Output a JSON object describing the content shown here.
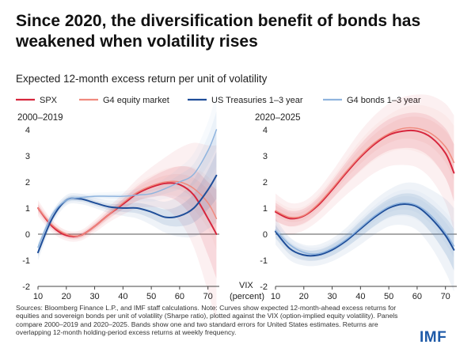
{
  "title": "Since 2020, the diversification benefit of bonds has weakened when volatility rises",
  "subtitle": "Expected 12-month excess return per unit of volatility",
  "sources": "Sources: Bloomberg Finance L.P., and IMF staff calculations. Note: Curves show expected 12-month-ahead excess returns for equities and sovereign bonds per unit of volatility (Sharpe ratio), plotted against the VIX (option-implied equity volatility). Panels compare 2000–2019 and 2020–2025. Bands show one and two standard errors for United States estimates. Returns are overlapping 12-month holding-period excess returns at weekly frequency.",
  "logo": "IMF",
  "chart_data": {
    "type": "line",
    "xlabel_lines": [
      "VIX",
      "(percent)"
    ],
    "xlim": [
      10,
      74
    ],
    "ylim": [
      -2,
      4
    ],
    "x_ticks": [
      10,
      20,
      30,
      40,
      50,
      60,
      70
    ],
    "y_ticks": [
      -2,
      -1,
      0,
      1,
      2,
      3,
      4
    ],
    "legend": [
      {
        "name": "SPX",
        "color": "#d7263d"
      },
      {
        "name": "G4 equity market",
        "color": "#f08a7e"
      },
      {
        "name": "US Treasuries 1–3 year",
        "color": "#1f4e99"
      },
      {
        "name": "G4 bonds 1–3 year",
        "color": "#8fb4de"
      }
    ],
    "panels": [
      {
        "title": "2000–2019",
        "x": [
          10,
          15,
          20,
          25,
          30,
          35,
          40,
          45,
          50,
          55,
          60,
          65,
          70,
          73
        ],
        "series": [
          {
            "name": "SPX",
            "color": "#d7263d",
            "width": 2.0,
            "values": [
              1.0,
              0.3,
              -0.05,
              -0.05,
              0.3,
              0.75,
              1.15,
              1.55,
              1.8,
              1.95,
              1.9,
              1.5,
              0.6,
              0.0
            ],
            "band": [
              0.15,
              0.12,
              0.1,
              0.1,
              0.12,
              0.15,
              0.2,
              0.28,
              0.38,
              0.5,
              0.7,
              1.0,
              1.4,
              1.7
            ]
          },
          {
            "name": "G4 equity market",
            "color": "#f08a7e",
            "width": 1.5,
            "values": [
              1.0,
              0.35,
              0.0,
              -0.05,
              0.3,
              0.75,
              1.2,
              1.6,
              1.85,
              2.0,
              2.0,
              1.75,
              1.2,
              0.6
            ],
            "band": [
              0.1,
              0.08,
              0.07,
              0.07,
              0.08,
              0.1,
              0.12,
              0.16,
              0.2,
              0.25,
              0.3,
              0.4,
              0.5,
              0.6
            ]
          },
          {
            "name": "US Treasuries 1–3 year",
            "color": "#1f4e99",
            "width": 2.0,
            "values": [
              -0.7,
              0.6,
              1.3,
              1.35,
              1.2,
              1.05,
              1.0,
              1.0,
              0.85,
              0.65,
              0.7,
              1.0,
              1.7,
              2.25
            ],
            "band": [
              0.15,
              0.12,
              0.1,
              0.1,
              0.1,
              0.12,
              0.15,
              0.2,
              0.25,
              0.3,
              0.4,
              0.55,
              0.75,
              0.9
            ]
          },
          {
            "name": "G4 bonds 1–3 year",
            "color": "#8fb4de",
            "width": 1.5,
            "values": [
              -0.5,
              0.75,
              1.3,
              1.4,
              1.45,
              1.45,
              1.45,
              1.5,
              1.55,
              1.75,
              2.0,
              2.3,
              3.2,
              4.0
            ],
            "band": [
              0.1,
              0.08,
              0.07,
              0.07,
              0.07,
              0.08,
              0.1,
              0.12,
              0.15,
              0.2,
              0.28,
              0.4,
              0.55,
              0.7
            ]
          }
        ]
      },
      {
        "title": "2020–2025",
        "x": [
          10,
          15,
          20,
          25,
          30,
          35,
          40,
          45,
          50,
          55,
          60,
          65,
          70,
          73
        ],
        "series": [
          {
            "name": "SPX",
            "color": "#d7263d",
            "width": 2.0,
            "values": [
              0.85,
              0.6,
              0.7,
              1.1,
              1.7,
              2.35,
              2.95,
              3.45,
              3.8,
              3.95,
              3.95,
              3.7,
              3.1,
              2.35
            ],
            "band": [
              0.35,
              0.3,
              0.28,
              0.3,
              0.35,
              0.42,
              0.5,
              0.55,
              0.6,
              0.65,
              0.7,
              0.8,
              0.95,
              1.1
            ]
          },
          {
            "name": "G4 equity market",
            "color": "#f08a7e",
            "width": 1.5,
            "values": [
              0.9,
              0.65,
              0.72,
              1.15,
              1.75,
              2.4,
              3.0,
              3.5,
              3.85,
              4.05,
              4.05,
              3.85,
              3.35,
              2.75
            ],
            "band": [
              0.2,
              0.18,
              0.17,
              0.18,
              0.2,
              0.25,
              0.3,
              0.33,
              0.36,
              0.4,
              0.45,
              0.5,
              0.6,
              0.7
            ]
          },
          {
            "name": "US Treasuries 1–3 year",
            "color": "#1f4e99",
            "width": 2.0,
            "values": [
              0.1,
              -0.55,
              -0.8,
              -0.8,
              -0.6,
              -0.25,
              0.2,
              0.65,
              1.0,
              1.15,
              1.05,
              0.6,
              -0.05,
              -0.6
            ],
            "band": [
              0.25,
              0.22,
              0.2,
              0.2,
              0.22,
              0.25,
              0.3,
              0.33,
              0.35,
              0.4,
              0.45,
              0.55,
              0.7,
              0.8
            ]
          },
          {
            "name": "G4 bonds 1–3 year",
            "color": "#8fb4de",
            "width": 1.5,
            "values": [
              0.15,
              -0.4,
              -0.7,
              -0.75,
              -0.55,
              -0.2,
              0.25,
              0.7,
              1.05,
              1.2,
              1.1,
              0.7,
              0.05,
              -0.45
            ],
            "band": [
              0.15,
              0.13,
              0.12,
              0.12,
              0.13,
              0.15,
              0.18,
              0.2,
              0.22,
              0.25,
              0.28,
              0.33,
              0.4,
              0.45
            ]
          }
        ]
      }
    ]
  }
}
